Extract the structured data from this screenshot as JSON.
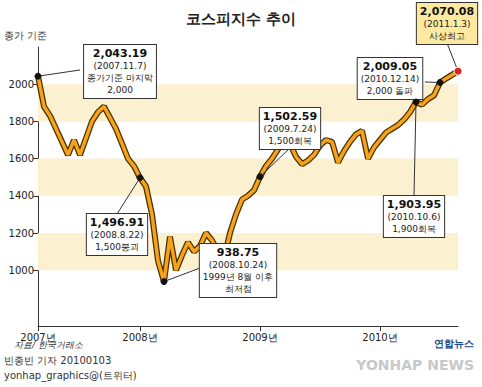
{
  "chart_data": {
    "type": "line",
    "title": "코스피지수 추이",
    "subtitle": "종가 기준",
    "source": "자료/ 한국거래소",
    "credits": [
      "빈종빈 기자 20100103",
      "yonhap_graphics@(트위터)"
    ],
    "logo": "연합뉴스",
    "watermark": "YONHAP NEWS",
    "color": "#f7a21b",
    "grid": true,
    "categories": [
      "2007년",
      null,
      null,
      null,
      null,
      null,
      null,
      null,
      null,
      null,
      null,
      null,
      null,
      null,
      null,
      null,
      null,
      "2008년",
      null,
      null,
      null,
      null,
      null,
      null,
      null,
      null,
      null,
      null,
      null,
      null,
      null,
      null,
      null,
      null,
      null,
      null,
      null,
      "2009년",
      null,
      null,
      null,
      null,
      null,
      null,
      null,
      null,
      null,
      null,
      null,
      null,
      null,
      null,
      null,
      null,
      null,
      null,
      null,
      "2010년",
      null,
      null,
      null,
      null,
      null,
      null,
      null,
      null,
      null,
      null,
      null,
      null,
      null
    ],
    "values": [
      2043.19,
      1880,
      1830,
      1760,
      1690,
      1620,
      1700,
      1620,
      1710,
      1800,
      1850,
      1880,
      1820,
      1760,
      1680,
      1600,
      1560,
      1496.91,
      1450,
      1300,
      1050,
      938.75,
      1180,
      1000,
      1080,
      1150,
      1100,
      1130,
      1200,
      1160,
      1100,
      1060,
      1200,
      1300,
      1380,
      1400,
      1430,
      1502.59,
      1560,
      1600,
      1650,
      1700,
      1680,
      1610,
      1570,
      1590,
      1620,
      1670,
      1700,
      1690,
      1580,
      1640,
      1690,
      1730,
      1750,
      1600,
      1660,
      1700,
      1740,
      1760,
      1780,
      1810,
      1850,
      1903.95,
      1890,
      1920,
      1940,
      2009.05,
      2030,
      2050,
      2070.08
    ],
    "ylim": [
      700,
      2200
    ],
    "yticks": [
      1000,
      1200,
      1400,
      1600,
      1800,
      2000
    ],
    "annotations": [
      {
        "value": 2043.19,
        "label": "2,043.19",
        "date": "(2007.11.7)",
        "note": [
          "종가기준 마지막",
          "2,000"
        ]
      },
      {
        "value": 1496.91,
        "label": "1,496.91",
        "date": "(2008.8.22)",
        "note": [
          "1,500붕괴"
        ]
      },
      {
        "value": 938.75,
        "label": "938.75",
        "date": "(2008.10.24)",
        "note": [
          "1999년 8월 이후",
          "최저점"
        ]
      },
      {
        "value": 1502.59,
        "label": "1,502.59",
        "date": "(2009.7.24)",
        "note": [
          "1,500회복"
        ]
      },
      {
        "value": 2009.05,
        "label": "2,009.05",
        "date": "(2010.12.14)",
        "note": [
          "2,000 돌파"
        ]
      },
      {
        "value": 1903.95,
        "label": "1,903.95",
        "date": "(2010.10.6)",
        "note": [
          "1,900회복"
        ]
      },
      {
        "value": 2070.08,
        "label": "2,070.08",
        "date": "(2011.1.3)",
        "note": [
          "사상최고"
        ]
      }
    ]
  }
}
